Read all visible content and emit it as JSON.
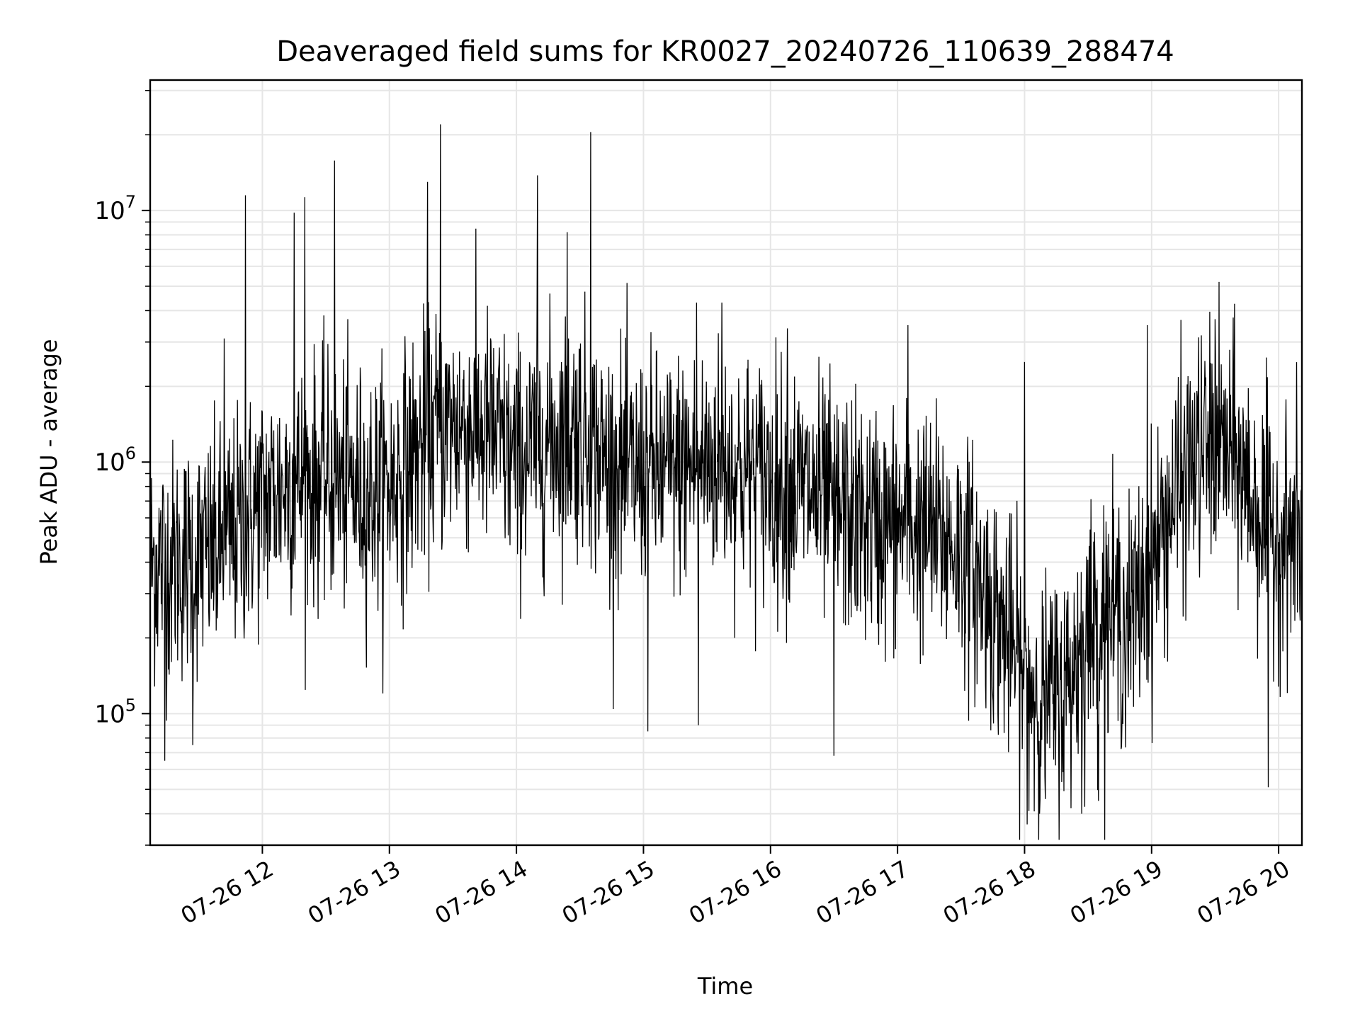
{
  "chart_data": {
    "type": "line",
    "title": "Deaveraged field sums for KR0027_20240726_110639_288474",
    "xlabel": "Time",
    "ylabel": "Peak ADU - average",
    "yscale": "log",
    "ylim": [
      30000,
      33000000
    ],
    "xlim": [
      "07-26 11:07",
      "07-26 20:11"
    ],
    "grid": true,
    "line_color": "#000000",
    "grid_color": "#e6e6e6",
    "x_ticks": [
      {
        "label": "07-26 12",
        "hour": 12
      },
      {
        "label": "07-26 13",
        "hour": 13
      },
      {
        "label": "07-26 14",
        "hour": 14
      },
      {
        "label": "07-26 15",
        "hour": 15
      },
      {
        "label": "07-26 16",
        "hour": 16
      },
      {
        "label": "07-26 17",
        "hour": 17
      },
      {
        "label": "07-26 18",
        "hour": 18
      },
      {
        "label": "07-26 19",
        "hour": 19
      },
      {
        "label": "07-26 20",
        "hour": 20
      }
    ],
    "y_ticks": [
      {
        "base": "10",
        "exp": "5",
        "value": 100000
      },
      {
        "base": "10",
        "exp": "6",
        "value": 1000000
      },
      {
        "base": "10",
        "exp": "7",
        "value": 10000000
      }
    ],
    "series": [
      {
        "time": [
          "07-26 11:10",
          "07-26 11:20",
          "07-26 11:30",
          "07-26 11:40",
          "07-26 11:50",
          "07-26 12:00",
          "07-26 12:10",
          "07-26 12:20",
          "07-26 12:30",
          "07-26 12:40",
          "07-26 12:50",
          "07-26 13:00",
          "07-26 13:10",
          "07-26 13:20",
          "07-26 13:30",
          "07-26 13:40",
          "07-26 13:50",
          "07-26 14:00",
          "07-26 14:10",
          "07-26 14:20",
          "07-26 14:30",
          "07-26 14:40",
          "07-26 14:50",
          "07-26 15:00",
          "07-26 15:10",
          "07-26 15:20",
          "07-26 15:30",
          "07-26 15:40",
          "07-26 15:50",
          "07-26 16:00",
          "07-26 16:10",
          "07-26 16:20",
          "07-26 16:30",
          "07-26 16:40",
          "07-26 16:50",
          "07-26 17:00",
          "07-26 17:10",
          "07-26 17:20",
          "07-26 17:30",
          "07-26 17:40",
          "07-26 17:50",
          "07-26 18:00",
          "07-26 18:10",
          "07-26 18:20",
          "07-26 18:30",
          "07-26 18:40",
          "07-26 18:50",
          "07-26 19:00",
          "07-26 19:10",
          "07-26 19:20",
          "07-26 19:30",
          "07-26 19:40",
          "07-26 19:50",
          "07-26 20:00",
          "07-26 20:10"
        ],
        "level": [
          400000,
          400000,
          420000,
          450000,
          550000,
          700000,
          800000,
          850000,
          850000,
          800000,
          750000,
          800000,
          1000000,
          1300000,
          1400000,
          1400000,
          1250000,
          1000000,
          1150000,
          1300000,
          1350000,
          1050000,
          900000,
          900000,
          900000,
          950000,
          1000000,
          1000000,
          900000,
          850000,
          800000,
          750000,
          650000,
          600000,
          550000,
          550000,
          550000,
          500000,
          450000,
          320000,
          220000,
          140000,
          110000,
          130000,
          220000,
          260000,
          230000,
          380000,
          700000,
          1000000,
          1200000,
          1000000,
          650000,
          500000,
          500000
        ],
        "spikes": [
          {
            "time": "07-26 11:52",
            "value": 11500000
          },
          {
            "time": "07-26 12:15",
            "value": 9800000
          },
          {
            "time": "07-26 12:20",
            "value": 11300000
          },
          {
            "time": "07-26 12:34",
            "value": 15800000
          },
          {
            "time": "07-26 13:18",
            "value": 13000000
          },
          {
            "time": "07-26 13:24",
            "value": 22000000
          },
          {
            "time": "07-26 14:10",
            "value": 13800000
          },
          {
            "time": "07-26 14:24",
            "value": 8200000
          },
          {
            "time": "07-26 14:35",
            "value": 20500000
          },
          {
            "time": "07-26 11:42",
            "value": 3100000
          },
          {
            "time": "07-26 15:25",
            "value": 4300000
          },
          {
            "time": "07-26 15:37",
            "value": 4300000
          },
          {
            "time": "07-26 16:08",
            "value": 3400000
          },
          {
            "time": "07-26 17:05",
            "value": 3500000
          },
          {
            "time": "07-26 18:00",
            "value": 2500000
          },
          {
            "time": "07-26 18:58",
            "value": 3500000
          },
          {
            "time": "07-26 19:30",
            "value": 3700000
          },
          {
            "time": "07-26 19:55",
            "value": 3100000
          }
        ],
        "dips": [
          {
            "time": "07-26 11:14",
            "value": 65000
          },
          {
            "time": "07-26 11:27",
            "value": 75000
          },
          {
            "time": "07-26 15:02",
            "value": 85000
          },
          {
            "time": "07-26 15:26",
            "value": 90000
          },
          {
            "time": "07-26 16:30",
            "value": 68000
          },
          {
            "time": "07-26 18:02",
            "value": 41000
          },
          {
            "time": "07-26 18:07",
            "value": 40000
          },
          {
            "time": "07-26 18:27",
            "value": 40000
          },
          {
            "time": "07-26 18:35",
            "value": 45000
          },
          {
            "time": "07-26 19:55",
            "value": 51000
          }
        ]
      }
    ]
  }
}
